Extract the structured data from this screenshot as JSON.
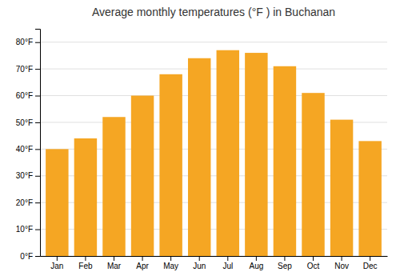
{
  "chart_data": {
    "type": "bar",
    "title": "Average monthly temperatures (°F ) in Buchanan",
    "categories": [
      "Jan",
      "Feb",
      "Mar",
      "Apr",
      "May",
      "Jun",
      "Jul",
      "Aug",
      "Sep",
      "Oct",
      "Nov",
      "Dec"
    ],
    "values": [
      40,
      44,
      52,
      60,
      68,
      74,
      77,
      76,
      71,
      61,
      51,
      43
    ],
    "color": "#F5A623",
    "ylim": [
      0,
      85
    ],
    "yticks": [
      {
        "value": 0,
        "label": "0°F"
      },
      {
        "value": 10,
        "label": "10°F"
      },
      {
        "value": 20,
        "label": "20°F"
      },
      {
        "value": 30,
        "label": "30°F"
      },
      {
        "value": 40,
        "label": "40°F"
      },
      {
        "value": 50,
        "label": "50°F"
      },
      {
        "value": 60,
        "label": "60°F"
      },
      {
        "value": 70,
        "label": "70°F"
      },
      {
        "value": 80,
        "label": "80°F"
      }
    ],
    "grid": true
  }
}
